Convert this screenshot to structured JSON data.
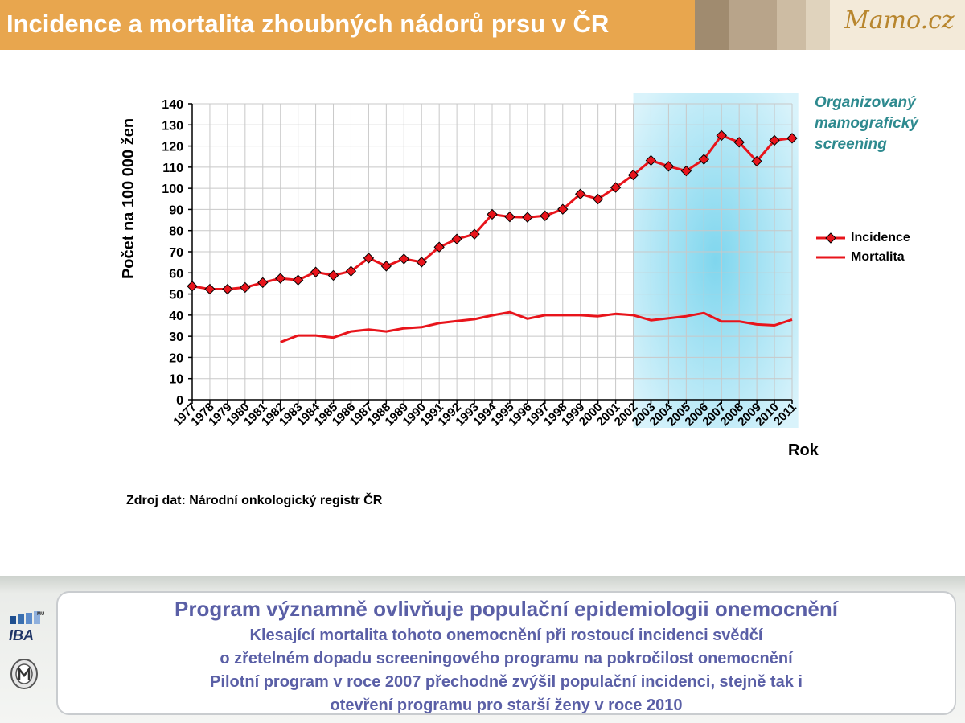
{
  "header": {
    "title": "Incidence a mortalita zhoubných nádorů prsu v ČR",
    "brand_logo_text": "Mamo.cz",
    "colors": {
      "bar": "#e8a64e",
      "title_text": "#ffffff",
      "deco": [
        "#a08b6f",
        "#b8a48a",
        "#cdbca3",
        "#e0d3bd"
      ]
    }
  },
  "chart_data": {
    "type": "line",
    "title": "",
    "xlabel": "Rok",
    "ylabel": "Počet  na 100 000 žen",
    "ylim": [
      0,
      140
    ],
    "yticks": [
      0,
      10,
      20,
      30,
      40,
      50,
      60,
      70,
      80,
      90,
      100,
      110,
      120,
      130,
      140
    ],
    "grid": true,
    "legend_position": "right",
    "categories": [
      "1977",
      "1978",
      "1979",
      "1980",
      "1981",
      "1982",
      "1983",
      "1984",
      "1985",
      "1986",
      "1987",
      "1988",
      "1989",
      "1990",
      "1991",
      "1992",
      "1993",
      "1994",
      "1995",
      "1996",
      "1997",
      "1998",
      "1999",
      "2000",
      "2001",
      "2002",
      "2003",
      "2004",
      "2005",
      "2006",
      "2007",
      "2008",
      "2009",
      "2010",
      "2011"
    ],
    "series": [
      {
        "name": "Incidence",
        "color": "#e8141b",
        "marker": "diamond",
        "values": [
          53.7,
          52.3,
          52.3,
          53.1,
          55.4,
          57.4,
          56.6,
          60.4,
          58.8,
          60.8,
          67.0,
          63.2,
          66.6,
          65.1,
          72.2,
          76.0,
          78.3,
          87.7,
          86.5,
          86.3,
          87.0,
          90.1,
          97.3,
          94.9,
          100.4,
          106.3,
          113.2,
          110.4,
          108.2,
          113.7,
          125.0,
          121.8,
          112.8,
          122.7,
          123.7
        ]
      },
      {
        "name": "Mortalita",
        "color": "#e8141b",
        "marker": "none",
        "values": [
          null,
          null,
          null,
          null,
          null,
          27.2,
          30.4,
          30.4,
          29.4,
          32.3,
          33.2,
          32.3,
          33.8,
          34.3,
          36.2,
          37.2,
          38.1,
          39.9,
          41.4,
          38.3,
          40.0,
          40.0,
          40.0,
          39.5,
          40.6,
          40.0,
          37.6,
          38.5,
          39.5,
          41.0,
          37.0,
          37.0,
          35.6,
          35.2,
          37.9
        ]
      }
    ],
    "highlight": {
      "from": "2002",
      "to": "2011",
      "label": "Organizovaný mamografický screening",
      "label_color": "#2e8a8f",
      "fill_color": "#7fd6ee"
    }
  },
  "legend": {
    "items": [
      {
        "label": "Incidence",
        "marker": "diamond"
      },
      {
        "label": "Mortalita",
        "marker": "none"
      }
    ]
  },
  "source_note": "Zdroj dat: Národní onkologický registr ČR",
  "footer": {
    "heading": "Program významně ovlivňuje populační epidemiologii onemocnění",
    "lines": [
      "Klesající mortalita tohoto onemocnění při rostoucí incidenci svědčí",
      "o zřetelném dopadu screeningového programu na pokročilost onemocnění",
      "Pilotní program v roce 2007 přechodně zvýšil populační incidenci, stejně tak i",
      "otevření programu pro starší ženy v roce 2010"
    ],
    "text_color": "#5a5fa6",
    "logos": {
      "iba_text": "IBA",
      "mu_text": "MU"
    }
  }
}
